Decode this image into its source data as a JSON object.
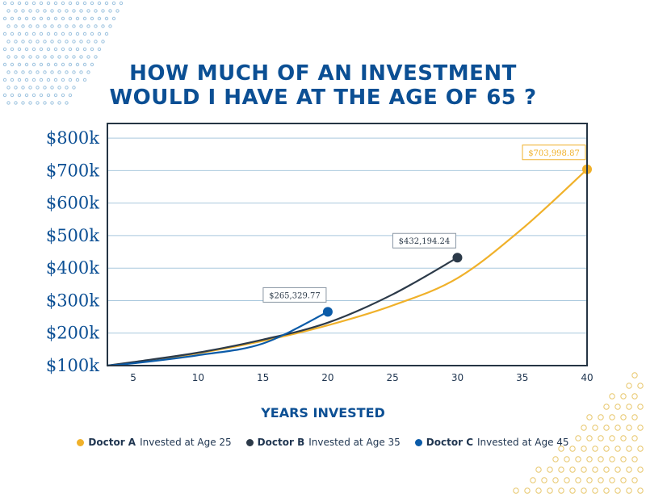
{
  "title_lines": [
    "HOW MUCH OF AN INVESTMENT",
    "WOULD I HAVE AT THE AGE OF 65 ?"
  ],
  "colors": {
    "title": "#0b4f94",
    "doctor_a": "#f0b12a",
    "doctor_b": "#2c3a49",
    "doctor_c": "#0b5ba8",
    "grid": "#a9c8dd",
    "frame": "#253544",
    "decor_blue": "#9dc3df",
    "decor_gold": "#e8c76c"
  },
  "legend": [
    {
      "name": "Doctor A",
      "desc": "Invested at Age 25",
      "color": "#f0b12a"
    },
    {
      "name": "Doctor B",
      "desc": "Invested at Age 35",
      "color": "#2c3a49"
    },
    {
      "name": "Doctor C",
      "desc": "Invested at Age 45",
      "color": "#0b5ba8"
    }
  ],
  "chart_data": {
    "type": "line",
    "title": "HOW MUCH OF AN INVESTMENT WOULD I HAVE AT THE AGE OF 65 ?",
    "xlabel": "YEARS INVESTED",
    "ylabel": "",
    "xlim": [
      3,
      40
    ],
    "ylim": [
      100000,
      845000
    ],
    "x_ticks": [
      5,
      10,
      15,
      20,
      25,
      30,
      35,
      40
    ],
    "y_ticks": [
      {
        "value": 100000,
        "label": "$100k"
      },
      {
        "value": 200000,
        "label": "$200k"
      },
      {
        "value": 300000,
        "label": "$300k"
      },
      {
        "value": 400000,
        "label": "$400k"
      },
      {
        "value": 500000,
        "label": "$500k"
      },
      {
        "value": 600000,
        "label": "$600k"
      },
      {
        "value": 700000,
        "label": "$700k"
      },
      {
        "value": 800000,
        "label": "$800k"
      }
    ],
    "grid": true,
    "legend_position": "bottom",
    "series": [
      {
        "name": "Doctor A Invested at Age 25",
        "color": "#f0b12a",
        "x": [
          3,
          5,
          10,
          15,
          20,
          25,
          30,
          35,
          40
        ],
        "y": [
          100000,
          110000,
          138000,
          176000,
          224000,
          285000,
          369000,
          521000,
          703998.87
        ],
        "end_label": "$703,998.87",
        "end_x": 40,
        "end_y": 703998.87
      },
      {
        "name": "Doctor B Invested at Age 35",
        "color": "#2c3a49",
        "x": [
          3,
          5,
          10,
          15,
          20,
          25,
          30
        ],
        "y": [
          100000,
          111000,
          140000,
          180000,
          232000,
          319000,
          432194.24
        ],
        "end_label": "$432,194.24",
        "end_x": 30,
        "end_y": 432194.24
      },
      {
        "name": "Doctor C Invested at Age 45",
        "color": "#0b5ba8",
        "x": [
          3,
          5,
          10,
          15,
          20
        ],
        "y": [
          100000,
          107000,
          132000,
          168000,
          265329.77
        ],
        "end_label": "$265,329.77",
        "end_x": 20,
        "end_y": 265329.77
      }
    ]
  }
}
